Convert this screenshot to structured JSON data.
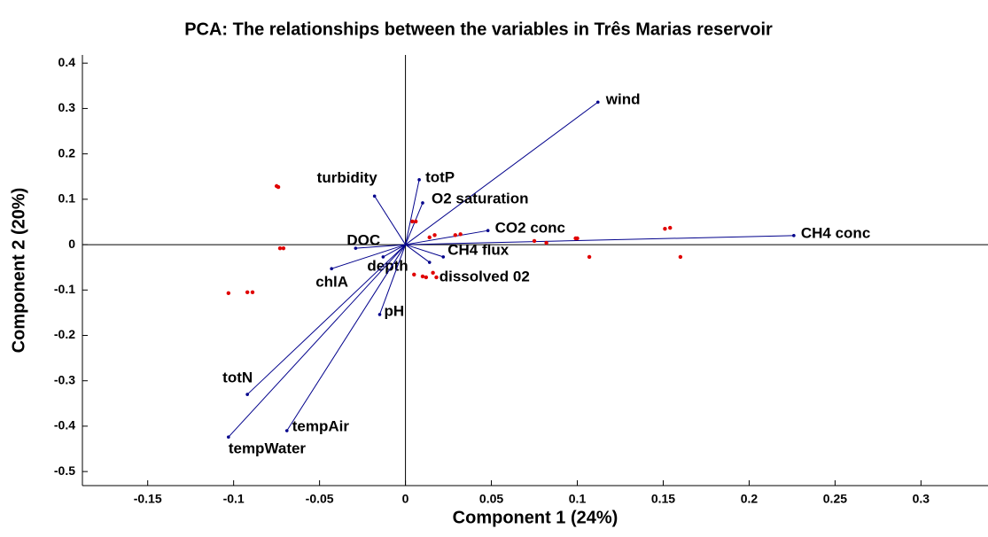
{
  "chart_data": {
    "type": "biplot",
    "title": "PCA: The relationships between the variables in Três Marias reservoir",
    "xlabel": "Component 1 (24%)",
    "ylabel": "Component 2 (20%)",
    "xlim": [
      -0.188,
      0.339
    ],
    "ylim": [
      -0.531,
      0.418
    ],
    "xticks": [
      -0.15,
      -0.1,
      -0.05,
      0,
      0.05,
      0.1,
      0.15,
      0.2,
      0.25,
      0.3
    ],
    "yticks": [
      -0.5,
      -0.4,
      -0.3,
      -0.2,
      -0.1,
      0,
      0.1,
      0.2,
      0.3,
      0.4
    ],
    "loadings": {
      "color": "#00008b",
      "names": [
        "wind",
        "CH4 conc",
        "CO2 conc",
        "totP",
        "O2 saturation",
        "turbidity",
        "DOC",
        "depth",
        "chlA",
        "pH",
        "totN",
        "tempAir",
        "tempWater",
        "CH4 flux",
        "dissolved 02"
      ],
      "x": [
        0.112,
        0.226,
        0.048,
        0.008,
        0.01,
        -0.018,
        -0.029,
        -0.013,
        -0.043,
        -0.015,
        -0.092,
        -0.069,
        -0.103,
        0.022,
        0.014
      ],
      "y": [
        0.314,
        0.02,
        0.031,
        0.143,
        0.092,
        0.107,
        -0.008,
        -0.027,
        -0.053,
        -0.154,
        -0.33,
        -0.41,
        -0.424,
        -0.027,
        -0.039
      ]
    },
    "scores": {
      "color": "#e00000",
      "x": [
        -0.075,
        -0.074,
        -0.073,
        -0.071,
        -0.103,
        -0.092,
        -0.089,
        0.004,
        0.006,
        0.014,
        0.017,
        0.029,
        0.032,
        0.075,
        0.082,
        0.099,
        0.1,
        0.107,
        0.151,
        0.154,
        0.16,
        0.005,
        0.01,
        0.012,
        0.016,
        0.018
      ],
      "y": [
        0.129,
        0.127,
        -0.008,
        -0.008,
        -0.107,
        -0.105,
        -0.105,
        0.051,
        0.051,
        0.016,
        0.021,
        0.021,
        0.023,
        0.008,
        0.004,
        0.014,
        0.014,
        -0.027,
        0.035,
        0.037,
        -0.027,
        -0.066,
        -0.07,
        -0.072,
        -0.062,
        -0.072
      ]
    }
  }
}
